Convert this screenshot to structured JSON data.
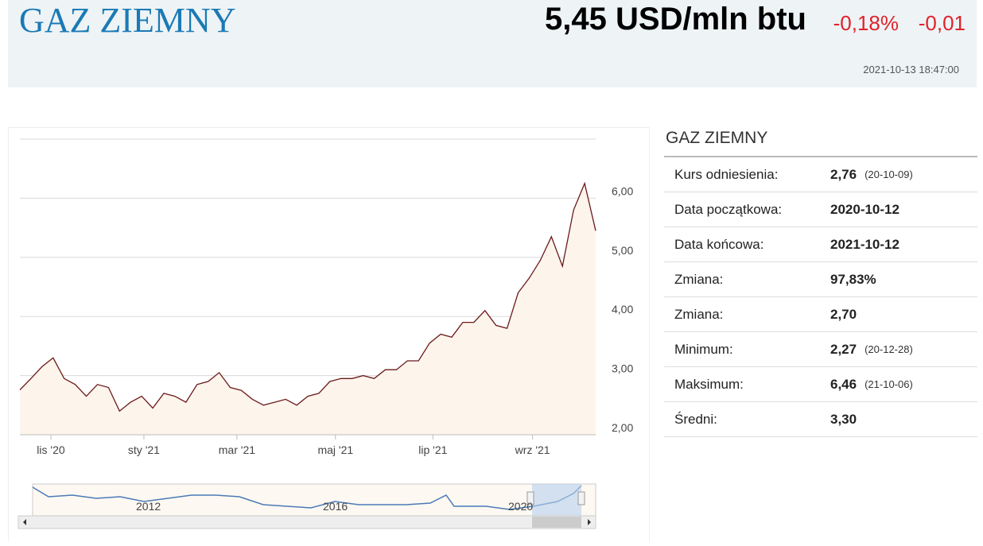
{
  "header": {
    "title": "GAZ ZIEMNY",
    "price": "5,45 USD/mln btu",
    "change_pct": "-0,18%",
    "change_abs": "-0,01",
    "timestamp": "2021-10-13 18:47:00"
  },
  "chart_data": {
    "type": "line",
    "color": "#6b1a1a",
    "area_color": "#fdf4ec",
    "grid": true,
    "values": [
      2.76,
      2.95,
      3.15,
      3.3,
      2.95,
      2.85,
      2.65,
      2.85,
      2.8,
      2.4,
      2.55,
      2.65,
      2.45,
      2.7,
      2.65,
      2.55,
      2.85,
      2.9,
      3.05,
      2.8,
      2.75,
      2.6,
      2.5,
      2.55,
      2.6,
      2.5,
      2.65,
      2.7,
      2.9,
      2.95,
      2.95,
      3.0,
      2.95,
      3.1,
      3.1,
      3.25,
      3.25,
      3.55,
      3.7,
      3.65,
      3.9,
      3.9,
      4.1,
      3.85,
      3.8,
      4.4,
      4.65,
      4.95,
      5.35,
      4.85,
      5.8,
      6.25,
      5.45
    ],
    "xlim": [
      0,
      52
    ],
    "xticks": [
      {
        "value": 2.8,
        "label": "lis '20"
      },
      {
        "value": 11.2,
        "label": "sty '21"
      },
      {
        "value": 19.6,
        "label": "mar '21"
      },
      {
        "value": 28.5,
        "label": "maj '21"
      },
      {
        "value": 37.3,
        "label": "lip '21"
      },
      {
        "value": 46.3,
        "label": "wrz '21"
      }
    ],
    "ylim": [
      2,
      7
    ],
    "yticks": [
      {
        "value": 2,
        "label": "2,00"
      },
      {
        "value": 3,
        "label": "3,00"
      },
      {
        "value": 4,
        "label": "4,00"
      },
      {
        "value": 5,
        "label": "5,00"
      },
      {
        "value": 6,
        "label": "6,00"
      },
      {
        "value": 7,
        "label": ""
      }
    ]
  },
  "navigator": {
    "labels": [
      "2012",
      "2016",
      "2020"
    ]
  },
  "stats": {
    "title": "GAZ ZIEMNY",
    "rows": [
      [
        "Kurs odniesienia:",
        "2,76",
        "(20-10-09)"
      ],
      [
        "Data początkowa:",
        "2020-10-12"
      ],
      [
        "Data końcowa:",
        "2021-10-12"
      ],
      [
        "Zmiana:",
        "97,83%"
      ],
      [
        "Zmiana:",
        "2,70"
      ],
      [
        "Minimum:",
        "2,27",
        "(20-12-28)"
      ],
      [
        "Maksimum:",
        "6,46",
        "(21-10-06)"
      ],
      [
        "Średni:",
        "3,30"
      ]
    ]
  }
}
